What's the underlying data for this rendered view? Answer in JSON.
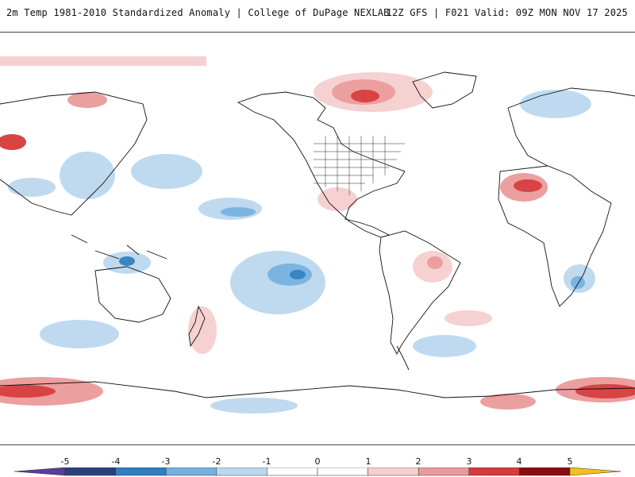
{
  "header": {
    "title_left": "2m Temp 1981-2010 Standardized Anomaly | College of DuPage NEXLAB",
    "title_right": "12Z GFS | F021 Valid: 09Z MON NOV 17 2025"
  },
  "colorbar": {
    "labels": [
      "-5",
      "-4",
      "-3",
      "-2",
      "-1",
      "0",
      "1",
      "2",
      "3",
      "4",
      "5"
    ],
    "bins": [
      {
        "range": "< -5",
        "color": "#5a3d9a"
      },
      {
        "range": "-5 to -4",
        "color": "#2a3f7a"
      },
      {
        "range": "-4 to -3",
        "color": "#2f7fc1"
      },
      {
        "range": "-3 to -2",
        "color": "#74b0e0"
      },
      {
        "range": "-2 to -1",
        "color": "#bcd8ef"
      },
      {
        "range": "-1 to 0",
        "color": "#ffffff"
      },
      {
        "range": "0 to 1",
        "color": "#ffffff"
      },
      {
        "range": "1 to 2",
        "color": "#f6cfcf"
      },
      {
        "range": "2 to 3",
        "color": "#ea9a9a"
      },
      {
        "range": "3 to 4",
        "color": "#d63a3a"
      },
      {
        "range": "4 to 5",
        "color": "#8b0a14"
      },
      {
        "range": "> 5",
        "color": "#f2c21b"
      }
    ]
  },
  "map": {
    "coastline_color": "#111111",
    "warm_colors": [
      "#f6cfcf",
      "#ea9a9a",
      "#d63a3a",
      "#8b0a14"
    ],
    "cold_colors": [
      "#bcd8ef",
      "#74b0e0",
      "#2f7fc1",
      "#2a3f7a"
    ]
  }
}
